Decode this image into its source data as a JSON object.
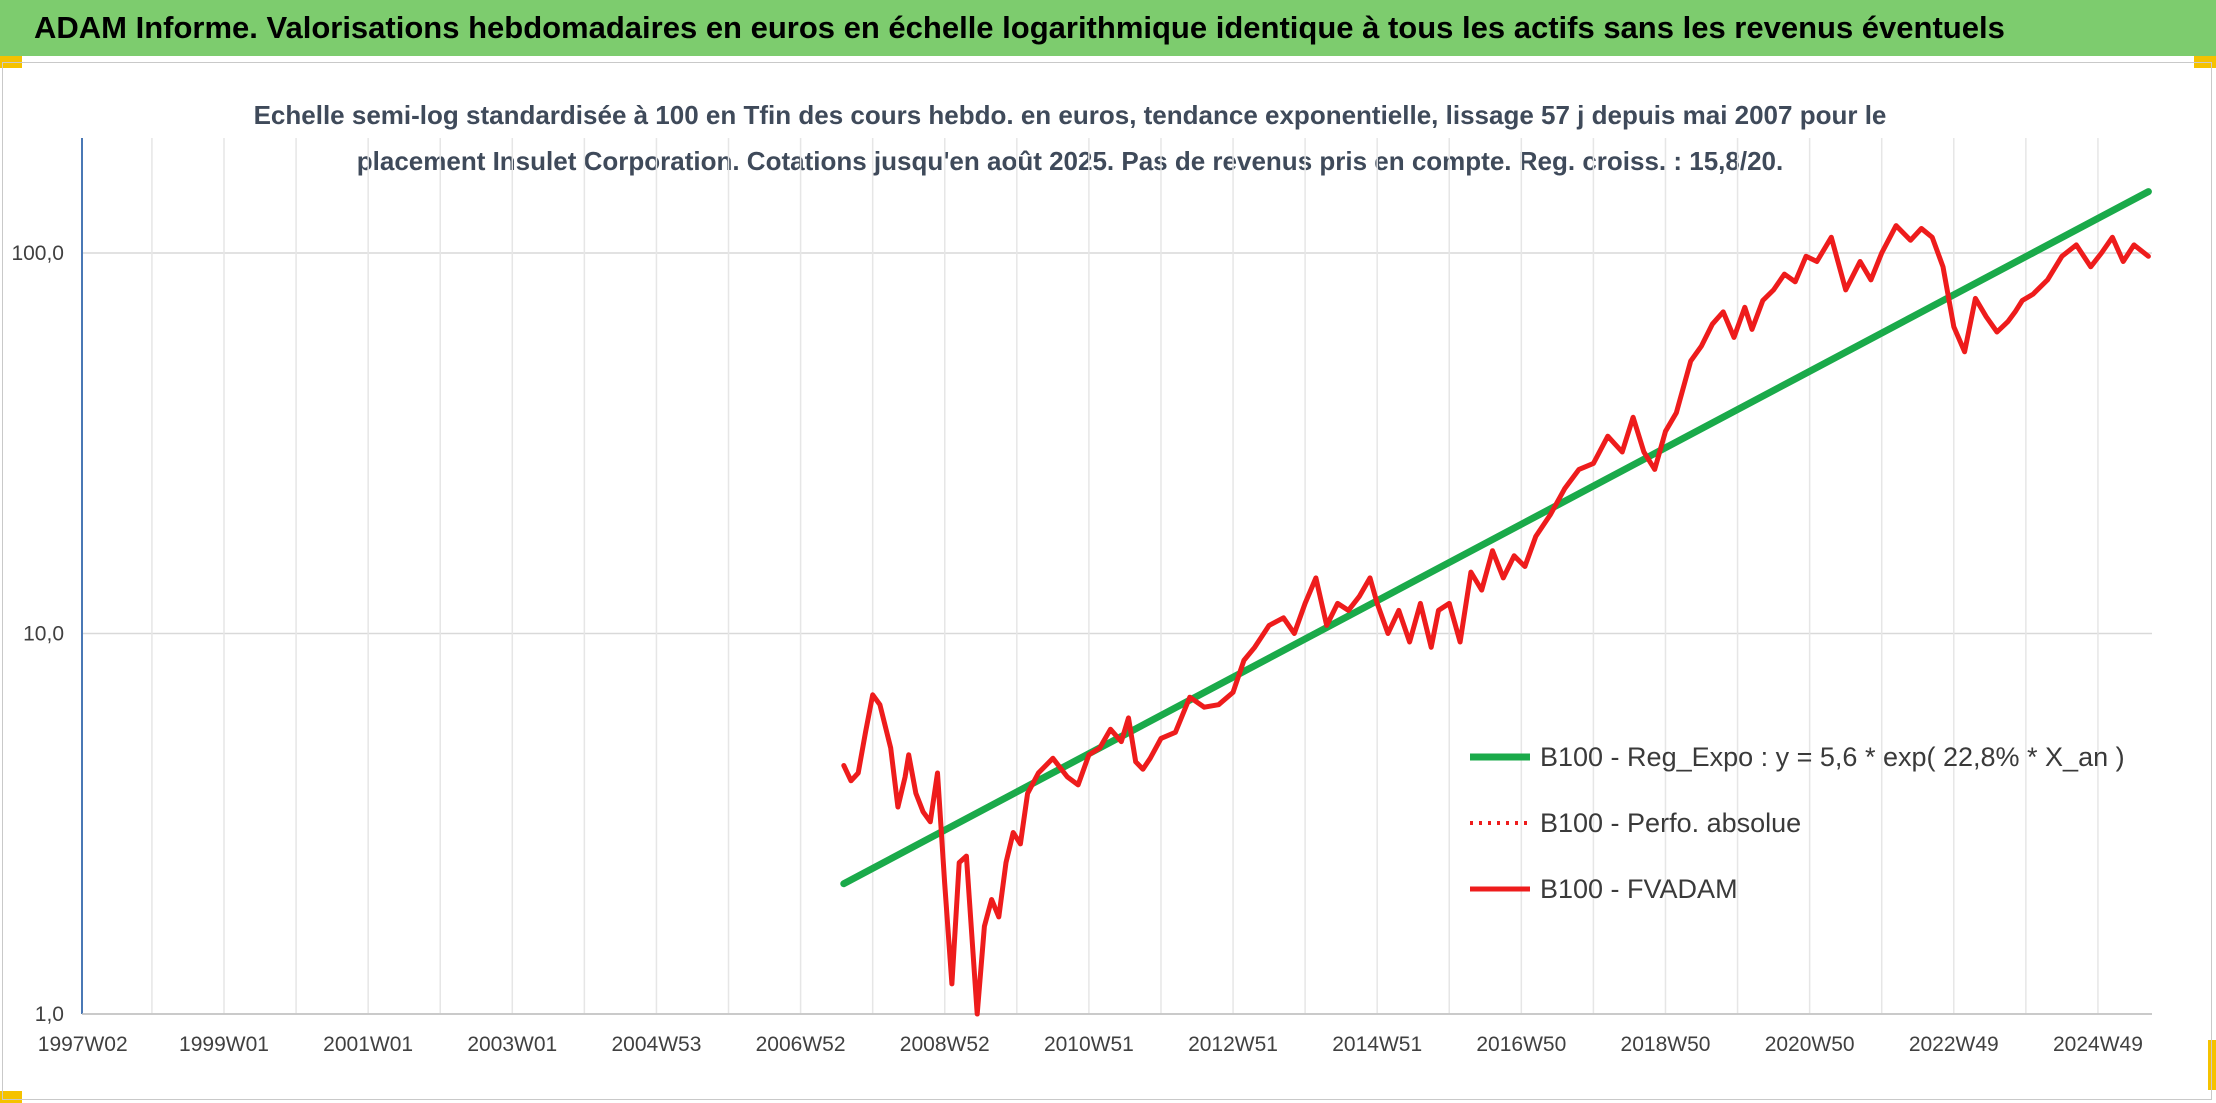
{
  "header": {
    "title": "ADAM Informe. Valorisations hebdomadaires en euros en échelle logarithmique identique à tous les actifs sans les revenus éventuels"
  },
  "chart_data": {
    "type": "line",
    "title_line1": "Echelle semi-log standardisée à 100 en Tfin des cours hebdo. en euros, tendance exponentielle, lissage 57 j depuis mai 2007 pour le",
    "title_line2": "placement Insulet Corporation.  Cotations jusqu'en août 2025. Pas de revenus pris en compte. Reg. croiss. : 15,8/20.",
    "y_scale": "log",
    "ylim": [
      1,
      180
    ],
    "y_ticks": [
      {
        "value": 1,
        "label": "1,0"
      },
      {
        "value": 10,
        "label": "10,0"
      },
      {
        "value": 100,
        "label": "100,0"
      }
    ],
    "x_range": [
      1997.03,
      2025.75
    ],
    "x_ticks": [
      {
        "value": 1997.04,
        "label": "1997W02"
      },
      {
        "value": 1999.0,
        "label": "1999W01"
      },
      {
        "value": 2001.0,
        "label": "2001W01"
      },
      {
        "value": 2003.0,
        "label": "2003W01"
      },
      {
        "value": 2005.0,
        "label": "2004W53"
      },
      {
        "value": 2007.0,
        "label": "2006W52"
      },
      {
        "value": 2009.0,
        "label": "2008W52"
      },
      {
        "value": 2011.0,
        "label": "2010W51"
      },
      {
        "value": 2013.0,
        "label": "2012W51"
      },
      {
        "value": 2015.0,
        "label": "2014W51"
      },
      {
        "value": 2017.0,
        "label": "2016W50"
      },
      {
        "value": 2019.0,
        "label": "2018W50"
      },
      {
        "value": 2021.0,
        "label": "2020W50"
      },
      {
        "value": 2023.0,
        "label": "2022W49"
      },
      {
        "value": 2025.0,
        "label": "2024W49"
      }
    ],
    "grid": true,
    "legend_position": "bottom-right",
    "series": [
      {
        "name": "B100 - Reg_Expo : y = 5,6 * exp( 22,8% *  X_an )",
        "color": "#1aaa4a",
        "style": "solid",
        "x": [
          2007.6,
          2025.7
        ],
        "y": [
          2.2,
          145
        ]
      },
      {
        "name": "B100 - Perfo. absolue",
        "color": "#ee1c1c",
        "style": "dotted",
        "x": [],
        "y": []
      },
      {
        "name": "B100 - FVADAM",
        "color": "#ee1c1c",
        "style": "solid",
        "x": [
          2007.6,
          2007.7,
          2007.8,
          2007.9,
          2008.0,
          2008.1,
          2008.25,
          2008.35,
          2008.45,
          2008.5,
          2008.6,
          2008.7,
          2008.8,
          2008.9,
          2009.0,
          2009.1,
          2009.2,
          2009.3,
          2009.45,
          2009.55,
          2009.65,
          2009.75,
          2009.85,
          2009.95,
          2010.05,
          2010.15,
          2010.3,
          2010.5,
          2010.7,
          2010.85,
          2011.0,
          2011.15,
          2011.3,
          2011.45,
          2011.55,
          2011.65,
          2011.75,
          2011.85,
          2012.0,
          2012.2,
          2012.4,
          2012.6,
          2012.8,
          2013.0,
          2013.15,
          2013.3,
          2013.5,
          2013.7,
          2013.85,
          2014.0,
          2014.15,
          2014.3,
          2014.45,
          2014.6,
          2014.75,
          2014.9,
          2015.0,
          2015.15,
          2015.3,
          2015.45,
          2015.6,
          2015.75,
          2015.85,
          2016.0,
          2016.15,
          2016.3,
          2016.45,
          2016.6,
          2016.75,
          2016.9,
          2017.05,
          2017.2,
          2017.4,
          2017.6,
          2017.8,
          2018.0,
          2018.2,
          2018.4,
          2018.55,
          2018.7,
          2018.85,
          2019.0,
          2019.15,
          2019.35,
          2019.5,
          2019.65,
          2019.8,
          2019.95,
          2020.1,
          2020.2,
          2020.35,
          2020.5,
          2020.65,
          2020.8,
          2020.95,
          2021.1,
          2021.3,
          2021.5,
          2021.7,
          2021.85,
          2022.0,
          2022.2,
          2022.4,
          2022.55,
          2022.7,
          2022.85,
          2023.0,
          2023.15,
          2023.3,
          2023.45,
          2023.6,
          2023.75,
          2023.85,
          2023.95,
          2024.1,
          2024.3,
          2024.5,
          2024.7,
          2024.9,
          2025.05,
          2025.2,
          2025.35,
          2025.5,
          2025.7
        ],
        "y": [
          4.5,
          4.1,
          4.3,
          5.5,
          6.9,
          6.5,
          5.0,
          3.5,
          4.2,
          4.8,
          3.8,
          3.4,
          3.2,
          4.3,
          2.2,
          1.2,
          2.5,
          2.6,
          1.0,
          1.7,
          2.0,
          1.8,
          2.5,
          3.0,
          2.8,
          3.8,
          4.3,
          4.7,
          4.2,
          4.0,
          4.8,
          5.0,
          5.6,
          5.2,
          6.0,
          4.6,
          4.4,
          4.7,
          5.3,
          5.5,
          6.8,
          6.4,
          6.5,
          7.0,
          8.5,
          9.2,
          10.5,
          11.0,
          10.0,
          12.0,
          14.0,
          10.5,
          12.0,
          11.5,
          12.5,
          14.0,
          12.0,
          10.0,
          11.5,
          9.5,
          12.0,
          9.2,
          11.5,
          12.0,
          9.5,
          14.5,
          13.0,
          16.5,
          14.0,
          16.0,
          15.0,
          18.0,
          20.5,
          24.0,
          27.0,
          28.0,
          33.0,
          30.0,
          37.0,
          30.0,
          27.0,
          34.0,
          38.0,
          52.0,
          57.0,
          65.0,
          70.0,
          60.0,
          72.0,
          63.0,
          75.0,
          80.0,
          88.0,
          84.0,
          98.0,
          95.0,
          110.0,
          80.0,
          95.0,
          85.0,
          100.0,
          118.0,
          108.0,
          116.0,
          110.0,
          92.0,
          64.0,
          55.0,
          76.0,
          68.0,
          62.0,
          66.0,
          70.0,
          75.0,
          78.0,
          85.0,
          98.0,
          105.0,
          92.0,
          100.0,
          110.0,
          95.0,
          105.0,
          98.0
        ]
      }
    ]
  }
}
